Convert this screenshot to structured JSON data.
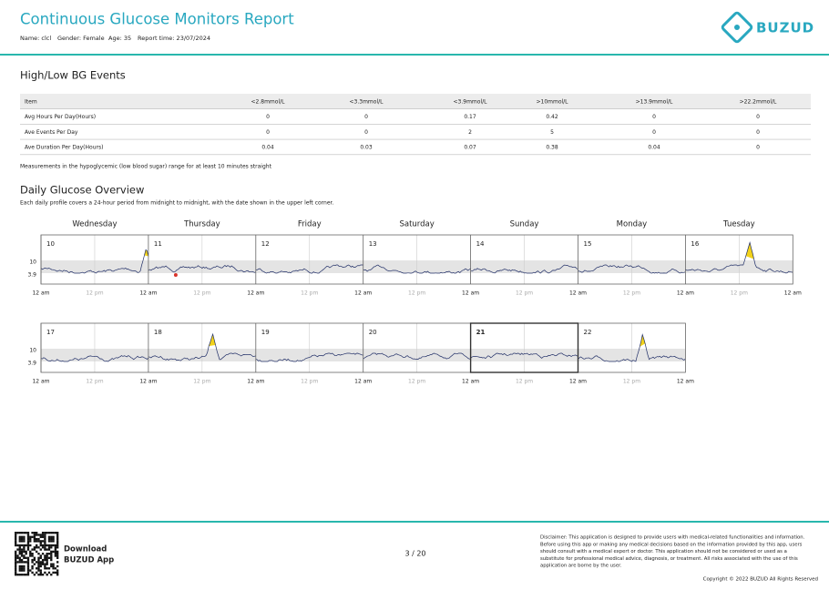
{
  "header": {
    "title": "Continuous Glucose Monitors Report",
    "name": "Name: clcl",
    "gender": "Gender: Female",
    "age": "Age: 35",
    "report_time": "Report time: 23/07/2024",
    "logo": "BUZUD"
  },
  "events": {
    "title": "High/Low BG Events",
    "table": {
      "columns": [
        "Item",
        "<2.8mmol/L",
        "<3.3mmol/L",
        "<3.9mmol/L",
        ">10mmol/L",
        ">13.9mmol/L",
        ">22.2mmol/L"
      ],
      "rows": [
        [
          "Avg Hours Per Day(Hours)",
          "0",
          "0",
          "0.17",
          "0.42",
          "0",
          "0"
        ],
        [
          "Ave Events Per Day",
          "0",
          "0",
          "2",
          "5",
          "0",
          "0"
        ],
        [
          "Ave Duration Per Day(Hours)",
          "0.04",
          "0.03",
          "0.07",
          "0.38",
          "0.04",
          "0"
        ]
      ]
    },
    "note": "Measurements in the hypoglycemic (low blood sugar) range for at least 10 minutes straight"
  },
  "overview": {
    "title": "Daily Glucose Overview",
    "subtitle": "Each daily profile covers a 24-hour period from midnight to midnight, with the date shown in the upper left corner.",
    "weekdays": [
      "Wednesday",
      "Thursday",
      "Friday",
      "Saturday",
      "Sunday",
      "Monday",
      "Tuesday"
    ],
    "y_labels": [
      "10",
      "3.9"
    ],
    "time_labels": {
      "midnight": "12 am",
      "noon": "12 pm"
    },
    "rows": [
      [
        "10",
        "11",
        "12",
        "13",
        "14",
        "15",
        "16"
      ],
      [
        "17",
        "18",
        "19",
        "20",
        "21",
        "22"
      ]
    ]
  },
  "footer": {
    "download": "Download",
    "app": "BUZUD App",
    "page": "3 / 20",
    "disclaimer": [
      "Disclaimer: This application is designed to provide users with medical-related functionalities and information.",
      "Before using this app or making any medical decisions based on the information provided by this app, users",
      "should consult with a medical expert or doctor. This application should not be considered or used as a",
      "substitute for professional medical advice, diagnosis, or treatment. All risks associated with the use of this",
      "application are borne by the user."
    ],
    "copyright": "Copyright © 2022 BUZUD All Rights Reserved"
  }
}
